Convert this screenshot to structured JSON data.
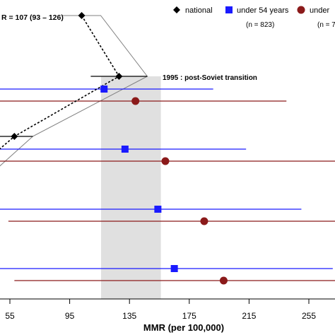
{
  "chart_data": {
    "type": "forest",
    "xlabel": "MMR (per 100,000)",
    "x_ticks": [
      55,
      95,
      135,
      175,
      215,
      255
    ],
    "xlim": [
      37,
      276
    ],
    "top_annotation": "R = 107 (93 – 126)",
    "band": {
      "x_from": 116,
      "x_to": 156,
      "label": "1995 : post-Soviet transition"
    },
    "legend": {
      "national": "national",
      "under54": "under 54 years",
      "under54_n": "(n = 823)",
      "other": "under",
      "other_n": "(n = 7"
    },
    "colors": {
      "national": "#000000",
      "under54": "#1a1aff",
      "other": "#8b1a1a",
      "band": "#e0e0e0",
      "funnel": "#808080"
    },
    "national_path": [
      {
        "x": 103,
        "y": 22
      },
      {
        "x": 128,
        "y": 108
      },
      {
        "x": 58,
        "y": 193
      },
      {
        "x": 20,
        "y": 262
      }
    ],
    "series": [
      {
        "name": "under 54 years",
        "key": "under54",
        "marker": "square",
        "points": [
          {
            "x": 118,
            "lo": 37,
            "hi": 191,
            "y": 126
          },
          {
            "x": 132,
            "lo": 37,
            "hi": 213,
            "y": 211
          },
          {
            "x": 154,
            "lo": 39,
            "hi": 250,
            "y": 296
          },
          {
            "x": 165,
            "lo": 42,
            "hi": 271,
            "y": 380
          }
        ]
      },
      {
        "name": "under",
        "key": "other",
        "marker": "circle",
        "points": [
          {
            "x": 139,
            "lo": 37,
            "hi": 240,
            "y": 143
          },
          {
            "x": 159,
            "lo": 37,
            "hi": 276,
            "y": 228
          },
          {
            "x": 185,
            "lo": 54,
            "hi": 276,
            "y": 313
          },
          {
            "x": 198,
            "lo": 58,
            "hi": 276,
            "y": 397
          }
        ]
      }
    ]
  }
}
